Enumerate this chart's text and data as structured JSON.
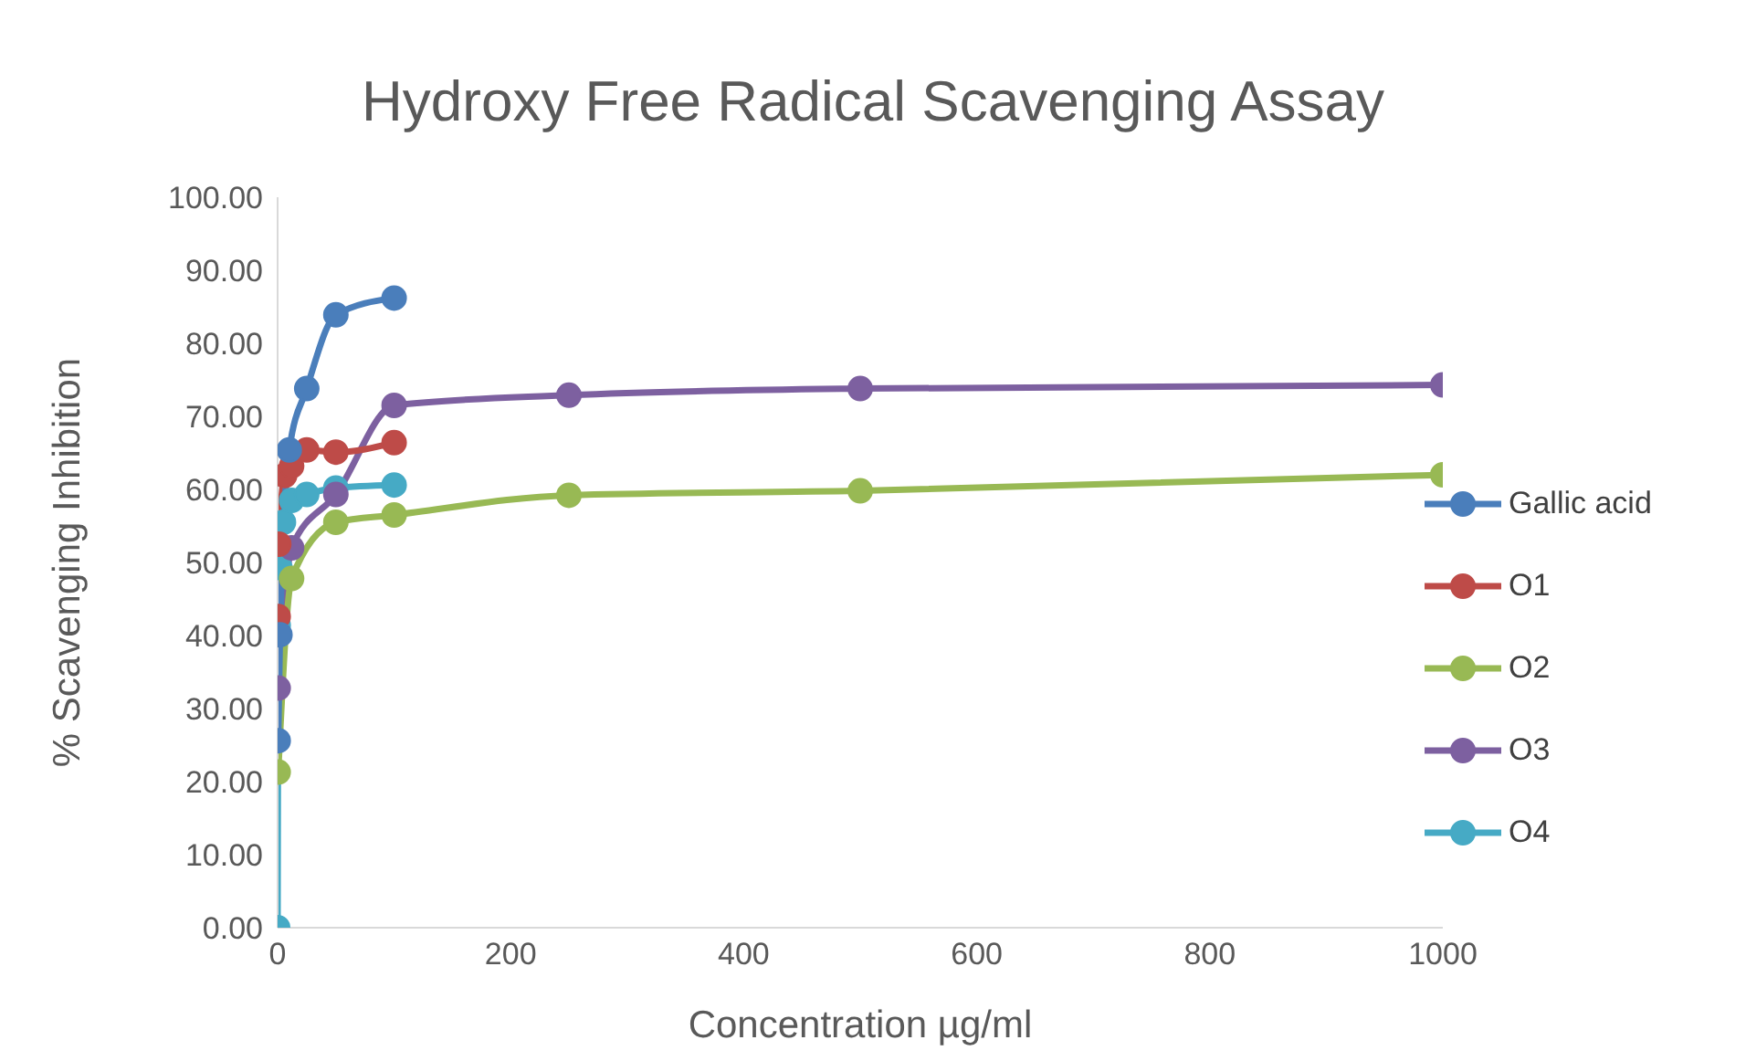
{
  "chart_data": {
    "type": "line",
    "title": "Hydroxy Free Radical Scavenging Assay",
    "xlabel": "Concentration  µg/ml",
    "ylabel": "% Scavenging Inhibition",
    "xlim": [
      0,
      1000
    ],
    "xticks": [
      0,
      200,
      400,
      600,
      800,
      1000
    ],
    "ylim": [
      0,
      100
    ],
    "yticks": [
      {
        "value": 0,
        "label": "0.00"
      },
      {
        "value": 10,
        "label": "10.00"
      },
      {
        "value": 20,
        "label": "20.00"
      },
      {
        "value": 30,
        "label": "30.00"
      },
      {
        "value": 40,
        "label": "40.00"
      },
      {
        "value": 50,
        "label": "50.00"
      },
      {
        "value": 60,
        "label": "60.00"
      },
      {
        "value": 70,
        "label": "70.00"
      },
      {
        "value": 80,
        "label": "80.00"
      },
      {
        "value": 90,
        "label": "90.00"
      },
      {
        "value": 100,
        "label": "100.00"
      }
    ],
    "grid": false,
    "legend": "right",
    "marker": "circle",
    "line_style": "solid",
    "series": [
      {
        "name": "Gallic acid",
        "color": "#4a7ebb",
        "x": [
          0.5,
          2,
          10,
          25,
          50,
          100
        ],
        "values": [
          25.6,
          40.1,
          65.4,
          73.8,
          83.9,
          86.2
        ]
      },
      {
        "name": "O1",
        "color": "#be4b48",
        "x": [
          0.5,
          1,
          6,
          12,
          25,
          50,
          100
        ],
        "values": [
          42.6,
          52.5,
          61.9,
          63.2,
          65.4,
          65.1,
          66.4
        ]
      },
      {
        "name": "O2",
        "color": "#98b954",
        "x": [
          0.5,
          12,
          50,
          100,
          250,
          500,
          1000
        ],
        "values": [
          21.3,
          47.8,
          55.5,
          56.5,
          59.2,
          59.8,
          62.0
        ]
      },
      {
        "name": "O3",
        "color": "#7d60a0",
        "x": [
          0.5,
          12,
          50,
          100,
          250,
          500,
          1000
        ],
        "values": [
          32.8,
          52.0,
          59.3,
          71.5,
          72.9,
          73.8,
          74.3
        ]
      },
      {
        "name": "O4",
        "color": "#46aac5",
        "x": [
          0,
          0.5,
          2,
          5,
          12,
          25,
          50,
          100
        ],
        "values": [
          0,
          41.4,
          49.3,
          55.5,
          58.5,
          59.3,
          60.2,
          60.6
        ]
      }
    ]
  }
}
